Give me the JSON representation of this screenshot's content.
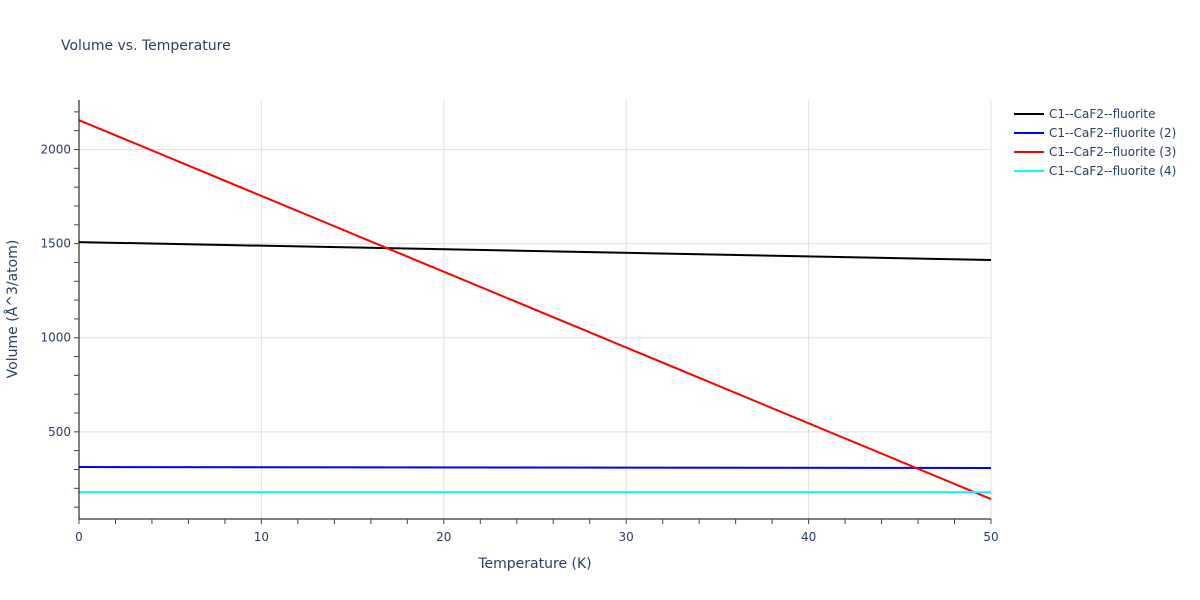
{
  "chart_data": {
    "type": "line",
    "title": "Volume vs. Temperature",
    "xlabel": "Temperature (K)",
    "ylabel": "Volume (Å^3/atom)",
    "xlim": [
      0,
      50
    ],
    "ylim": [
      37,
      2263
    ],
    "x_ticks": [
      0,
      10,
      20,
      30,
      40,
      50
    ],
    "y_ticks": [
      500,
      1000,
      1500,
      2000
    ],
    "grid": true,
    "legend_position": "right-top",
    "series": [
      {
        "name": "C1--CaF2--fluorite",
        "color": "#000000",
        "x": [
          0,
          50
        ],
        "values": [
          1508,
          1413
        ]
      },
      {
        "name": "C1--CaF2--fluorite (2)",
        "color": "#0000ff",
        "x": [
          0,
          50
        ],
        "values": [
          313,
          308
        ]
      },
      {
        "name": "C1--CaF2--fluorite (3)",
        "color": "#ff0000",
        "x": [
          0,
          50
        ],
        "values": [
          2156,
          143
        ]
      },
      {
        "name": "C1--CaF2--fluorite (4)",
        "color": "#00ffff",
        "x": [
          0,
          50
        ],
        "values": [
          180,
          180
        ]
      }
    ]
  }
}
